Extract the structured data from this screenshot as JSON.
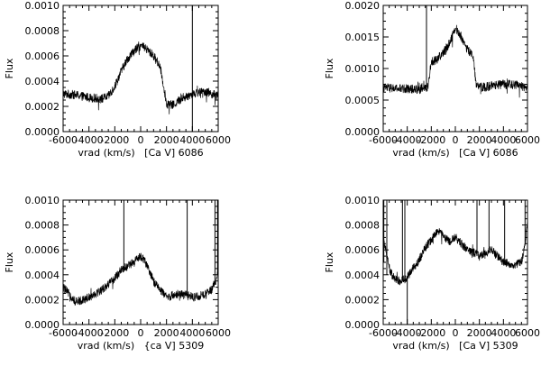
{
  "chart_data": [
    {
      "type": "line",
      "ylabel": "Flux",
      "xlabel": "vrad (km/s)   [Ca V] 6086",
      "xlim": [
        -6000,
        6000
      ],
      "ylim": [
        0,
        0.001
      ],
      "xticks": [
        -6000,
        -4000,
        -2000,
        0,
        2000,
        4000,
        6000
      ],
      "xtick_labels": [
        "-6000",
        "-4000",
        "-2000",
        "0",
        "2000",
        "4000",
        "6000"
      ],
      "yticks": [
        0,
        0.0002,
        0.0004,
        0.0006,
        0.0008,
        0.001
      ],
      "ytick_labels": [
        "0.0000",
        "0.0002",
        "0.0004",
        "0.0006",
        "0.0008",
        "0.0010"
      ],
      "series": [
        {
          "x": [
            -6000,
            -5000,
            -4000,
            -3000,
            -2500,
            -2000,
            -1500,
            -1000,
            -500,
            0,
            500,
            1000,
            1500,
            1800,
            2000,
            2500,
            3000,
            4000,
            5000,
            6000
          ],
          "values": [
            0.0003,
            0.00029,
            0.00027,
            0.00026,
            0.00028,
            0.00036,
            0.00048,
            0.00058,
            0.00064,
            0.00068,
            0.00065,
            0.0006,
            0.00052,
            0.00035,
            0.00022,
            0.00021,
            0.00025,
            0.0003,
            0.00032,
            0.00028
          ],
          "spikes": [
            {
              "x": 4000,
              "top": 0.001,
              "bottom": 0.0
            }
          ]
        }
      ]
    },
    {
      "type": "line",
      "ylabel": "Flux",
      "xlabel": "vrad (km/s)   [Ca V] 6086",
      "xlim": [
        -6000,
        6000
      ],
      "ylim": [
        0,
        0.002
      ],
      "xticks": [
        -6000,
        -4000,
        -2000,
        0,
        2000,
        4000,
        6000
      ],
      "xtick_labels": [
        "-6000",
        "-4000",
        "-2000",
        "0",
        "2000",
        "4000",
        "6000"
      ],
      "yticks": [
        0,
        0.0005,
        0.001,
        0.0015,
        0.002
      ],
      "ytick_labels": [
        "0.0000",
        "0.0005",
        "0.0010",
        "0.0015",
        "0.0020"
      ],
      "series": [
        {
          "x": [
            -6000,
            -5000,
            -4000,
            -3000,
            -2300,
            -2000,
            -1500,
            -1000,
            -500,
            0,
            500,
            1000,
            1500,
            1700,
            2000,
            3000,
            4000,
            5000,
            6000
          ],
          "values": [
            0.0007,
            0.00068,
            0.00068,
            0.00067,
            0.0007,
            0.0011,
            0.00115,
            0.00125,
            0.0014,
            0.00165,
            0.0015,
            0.0013,
            0.0012,
            0.00075,
            0.0007,
            0.00072,
            0.00075,
            0.00074,
            0.0007
          ],
          "spikes": [
            {
              "x": -2400,
              "top": 0.002,
              "bottom": 0.0007
            }
          ]
        }
      ]
    },
    {
      "type": "line",
      "ylabel": "Flux",
      "xlabel": "vrad (km/s)   {ca V] 5309",
      "xlim": [
        -6000,
        6000
      ],
      "ylim": [
        0,
        0.001
      ],
      "xticks": [
        -6000,
        -4000,
        -2000,
        0,
        2000,
        4000,
        6000
      ],
      "xtick_labels": [
        "-6000",
        "-4000",
        "-2000",
        "0",
        "2000",
        "4000",
        "6000"
      ],
      "yticks": [
        0,
        0.0002,
        0.0004,
        0.0006,
        0.0008,
        0.001
      ],
      "ytick_labels": [
        "0.0000",
        "0.0002",
        "0.0004",
        "0.0006",
        "0.0008",
        "0.0010"
      ],
      "series": [
        {
          "x": [
            -6000,
            -5500,
            -5000,
            -4000,
            -3000,
            -2000,
            -1500,
            -1000,
            -500,
            0,
            300,
            600,
            1000,
            1500,
            2000,
            3000,
            4000,
            5000,
            5500,
            5800,
            6000
          ],
          "values": [
            0.0003,
            0.00024,
            0.00018,
            0.00022,
            0.00028,
            0.00037,
            0.00044,
            0.00047,
            0.0005,
            0.00055,
            0.00052,
            0.00044,
            0.00035,
            0.00028,
            0.00022,
            0.00025,
            0.00022,
            0.00024,
            0.00028,
            0.00035,
            0.00045
          ],
          "spikes": [
            {
              "x": -1300,
              "top": 0.001,
              "bottom": 0.00045
            },
            {
              "x": 3600,
              "top": 0.001,
              "bottom": 0.00024
            },
            {
              "x": 5750,
              "top": 0.001,
              "bottom": 0.00032
            },
            {
              "x": 5950,
              "top": 0.001,
              "bottom": 0.0004
            }
          ]
        }
      ]
    },
    {
      "type": "line",
      "ylabel": "Flux",
      "xlabel": "vrad (km/s)   [Ca V] 5309",
      "xlim": [
        -6000,
        6000
      ],
      "ylim": [
        0,
        0.001
      ],
      "xticks": [
        -6000,
        -4000,
        -2000,
        0,
        2000,
        4000,
        6000
      ],
      "xtick_labels": [
        "-6000",
        "-4000",
        "-2000",
        "0",
        "2000",
        "4000",
        "6000"
      ],
      "yticks": [
        0,
        0.0002,
        0.0004,
        0.0006,
        0.0008,
        0.001
      ],
      "ytick_labels": [
        "0.0000",
        "0.0002",
        "0.0004",
        "0.0006",
        "0.0008",
        "0.0010"
      ],
      "series": [
        {
          "x": [
            -6000,
            -5700,
            -5400,
            -5000,
            -4500,
            -4000,
            -3500,
            -3000,
            -2500,
            -2000,
            -1500,
            -1000,
            -500,
            0,
            500,
            1000,
            1500,
            2000,
            3000,
            4000,
            5000,
            5500,
            5800,
            6000
          ],
          "values": [
            0.0007,
            0.00055,
            0.00042,
            0.00036,
            0.00035,
            0.00038,
            0.00045,
            0.00052,
            0.00062,
            0.00068,
            0.00075,
            0.00072,
            0.00066,
            0.0007,
            0.00065,
            0.0006,
            0.00058,
            0.00055,
            0.0006,
            0.0005,
            0.00048,
            0.0005,
            0.00065,
            0.00085
          ],
          "spikes": [
            {
              "x": -5950,
              "top": 0.001,
              "bottom": 0.0005
            },
            {
              "x": -5700,
              "top": 0.001,
              "bottom": 0.0004
            },
            {
              "x": -4400,
              "top": 0.001,
              "bottom": 0.00035
            },
            {
              "x": -4200,
              "top": 0.001,
              "bottom": 0.00038
            },
            {
              "x": -4000,
              "top": 0.00038,
              "bottom": 0.0
            },
            {
              "x": 1800,
              "top": 0.001,
              "bottom": 0.00055
            },
            {
              "x": 2800,
              "top": 0.001,
              "bottom": 0.00058
            },
            {
              "x": 4100,
              "top": 0.001,
              "bottom": 0.00048
            },
            {
              "x": 5800,
              "top": 0.001,
              "bottom": 0.00065
            }
          ]
        }
      ]
    }
  ]
}
